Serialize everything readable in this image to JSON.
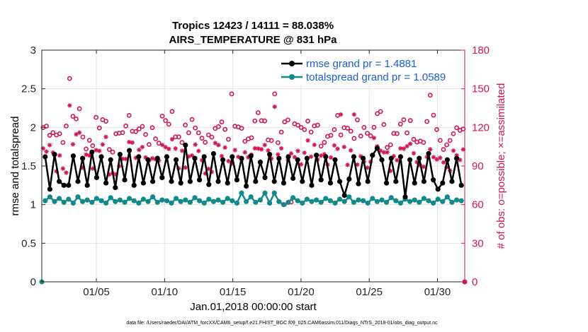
{
  "chart_data": {
    "type": "line",
    "title_line1": "Tropics 12423 / 14111 = 88.038%",
    "title_line2": "AIRS_TEMPERATURE @ 831 hPa",
    "xlabel": "Jan.01,2018 00:00:00 start",
    "ylabel_left": "rmse and totalspread",
    "ylabel_right": "# of obs: o=possible; ×=assimilated",
    "footnote": "data file: /Users/raeder/DAI/ATM_forcXX/CAM6_setup/f.e21.FHIST_BGC.f09_025.CAM6assim.011/Diags_NTrS_2018-01/obs_diag_output.nc",
    "xlim": [
      1,
      32
    ],
    "ylim_left": [
      0,
      3
    ],
    "ylim_right": [
      0,
      180
    ],
    "x_ticks": [
      5,
      10,
      15,
      20,
      25,
      30
    ],
    "x_tick_labels": [
      "01/05",
      "01/10",
      "01/15",
      "01/20",
      "01/25",
      "01/30"
    ],
    "y_left_ticks": [
      "0",
      "0.5",
      "1",
      "1.5",
      "2",
      "2.5",
      "3"
    ],
    "y_right_ticks": [
      "0",
      "30",
      "60",
      "90",
      "120",
      "150",
      "180"
    ],
    "legend": [
      {
        "label": "rmse grand pr = 1.4881",
        "color": "#000000"
      },
      {
        "label": "totalspread grand pr = 1.0589",
        "color": "#138a8a"
      }
    ],
    "colors": {
      "rmse": "#000000",
      "spread": "#138a8a",
      "obs": "#d4145a"
    },
    "rmse_base": [
      1.62,
      1.2,
      1.65,
      1.3,
      1.6,
      1.25,
      1.63,
      1.3,
      1.6,
      1.25,
      1.68,
      1.35,
      1.62,
      1.28,
      1.58,
      1.22,
      1.65,
      1.32,
      1.7,
      1.25,
      1.62,
      1.28,
      1.58,
      1.3,
      1.6,
      1.35,
      1.62,
      1.3,
      1.58,
      1.28,
      1.64,
      1.3,
      1.6,
      1.32,
      1.62,
      1.26,
      1.66,
      1.3,
      1.58,
      1.28,
      1.62,
      1.32,
      1.6,
      1.24,
      1.63,
      1.3,
      1.55,
      1.35,
      1.65,
      1.3,
      1.6,
      1.28,
      1.62,
      1.34,
      1.58,
      1.3,
      1.6,
      1.25,
      1.64,
      1.32,
      1.62,
      1.28,
      1.58,
      1.3,
      1.6,
      1.33,
      1.62,
      1.27,
      1.6,
      1.3,
      1.64,
      1.32,
      1.58,
      1.28,
      1.6,
      1.3,
      1.62,
      1.34,
      1.58,
      1.28,
      1.6,
      1.3,
      1.66,
      1.32,
      1.62,
      1.28,
      1.58,
      1.3,
      1.6,
      1.25
    ],
    "spread_base": [
      1.05,
      1.1,
      1.04,
      1.08,
      1.03,
      1.07,
      1.02,
      1.1,
      1.04,
      1.06,
      1.03,
      1.08,
      1.05,
      1.02,
      1.09,
      1.04,
      1.06,
      1.03,
      1.08,
      1.05,
      1.02,
      1.07,
      1.04,
      1.1,
      1.03,
      1.06,
      1.05,
      1.02,
      1.08,
      1.04,
      1.06,
      1.03,
      1.09,
      1.05,
      1.02,
      1.07,
      1.04,
      1.06,
      1.03,
      1.08,
      1.05,
      1.02,
      1.07,
      1.04,
      1.1,
      1.03,
      1.06,
      1.05,
      1.02,
      1.08,
      1.04,
      1.06,
      1.03,
      1.09,
      1.05,
      1.02,
      1.07,
      1.04,
      1.06,
      1.03,
      1.08,
      1.05,
      1.02,
      1.07,
      1.04,
      1.1,
      1.03,
      1.06,
      1.05,
      1.02,
      1.08,
      1.04,
      1.06,
      1.03,
      1.09,
      1.05,
      1.02,
      1.07,
      1.04,
      1.06,
      1.03,
      1.08,
      1.05,
      1.02,
      1.07,
      1.04,
      1.1,
      1.03,
      1.06,
      1.05
    ],
    "rmse_dip_x": [
      2.5,
      23.2,
      27.6,
      29.9
    ],
    "rmse_dip_values": [
      1.25,
      1.12,
      1.1,
      1.2
    ],
    "rmse_peak_x": [
      11.7,
      25.5
    ],
    "rmse_peak_values": [
      1.77,
      1.73
    ],
    "spread_peak_x": [
      15.5,
      17.5,
      18.0
    ],
    "spread_peak_values": [
      1.15,
      1.15,
      1.15
    ],
    "spread_dip_x": [
      18.8
    ],
    "spread_dip_values": [
      1.0
    ],
    "possible_base": [
      120,
      115,
      130,
      110,
      125,
      108,
      122,
      118,
      112,
      128,
      115,
      120,
      110,
      125,
      118,
      112,
      126,
      114,
      120,
      116,
      124,
      110,
      122,
      118,
      114,
      126,
      112,
      120,
      116,
      124,
      110,
      122
    ],
    "possible_outlier_x": [
      3.0,
      15.0,
      18.0,
      19.2,
      29.5
    ],
    "possible_outlier_values": [
      158,
      146,
      146,
      62,
      145
    ],
    "assimilated_base": [
      100,
      92,
      110,
      95,
      105,
      90,
      102,
      98,
      94,
      108,
      96,
      100,
      92,
      104,
      98,
      94,
      106,
      96,
      100,
      97,
      103,
      92,
      101,
      98,
      95,
      104,
      94,
      100,
      97,
      102,
      92,
      101
    ],
    "assimilated_outlier_x": [
      3.0,
      18.0,
      18.8,
      23.0,
      24.0
    ],
    "assimilated_outlier_values": [
      137,
      136,
      60,
      130,
      130
    ]
  }
}
